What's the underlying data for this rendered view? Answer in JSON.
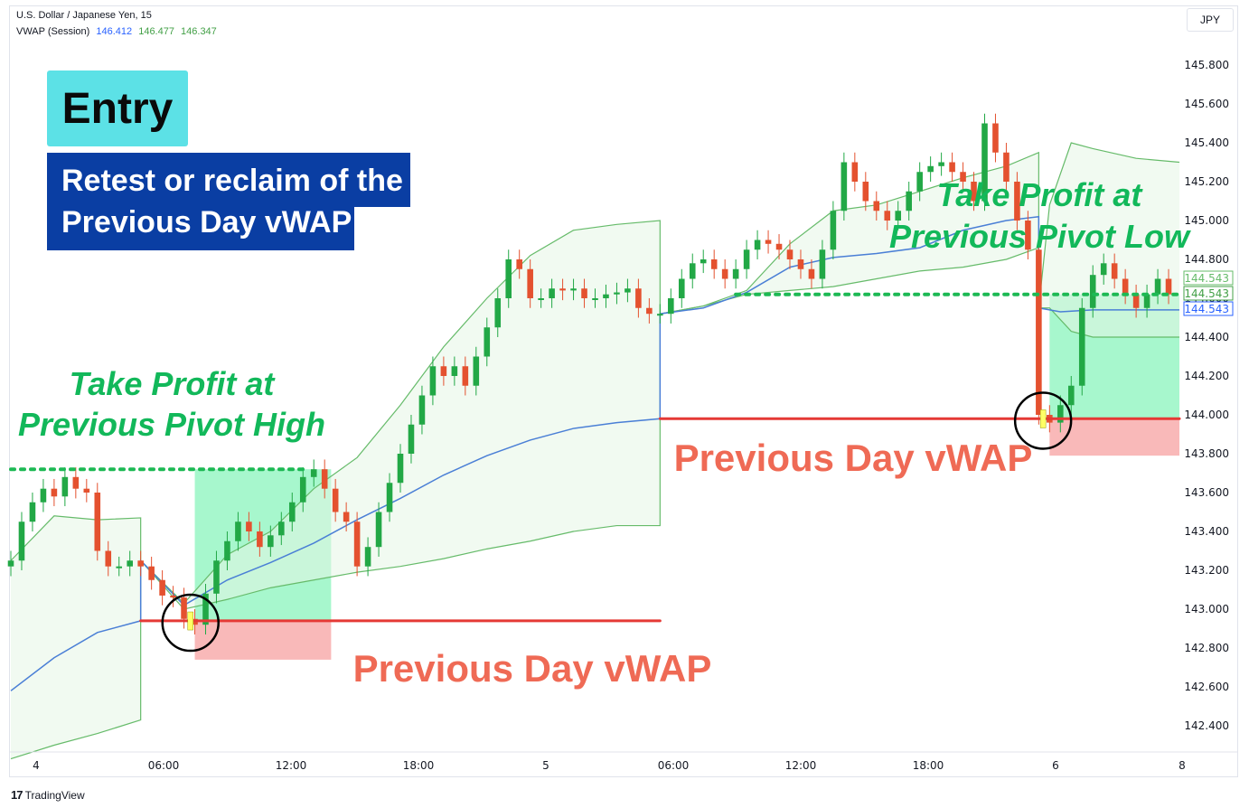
{
  "header": {
    "symbol": "U.S. Dollar / Japanese Yen, 15",
    "indicator": "VWAP (Session)",
    "vwap_values": [
      "146.412",
      "146.477",
      "146.347"
    ]
  },
  "currency_button": "JPY",
  "annotations": {
    "entry_title": "Entry",
    "entry_line1": "Retest or reclaim of the",
    "entry_line2": "Previous Day vWAP",
    "tp1_line1": "Take Profit at",
    "tp1_line2": "Previous Pivot High",
    "tp2_line1": "Take Profit at",
    "tp2_line2": "Previous Pivot Low",
    "prev_vwap_1": "Previous Day vWAP",
    "prev_vwap_2": "Previous Day vWAP"
  },
  "price_labels": [
    "144.543",
    "144.543",
    "144.543"
  ],
  "footer": {
    "brand": "TradingView"
  },
  "colors": {
    "bull": "#22a846",
    "bear": "#e4512f",
    "vwap": "#4a7fd6",
    "band": "#66bb6a",
    "level_red": "#e53935",
    "level_green": "#1db954",
    "tp_green": "#12b85a",
    "prev_text": "#ef6a55"
  },
  "chart_data": {
    "type": "line",
    "title": "U.S. Dollar / Japanese Yen, 15",
    "ylim": [
      142.22,
      146.0
    ],
    "y_ticks": [
      "145.800",
      "145.600",
      "145.400",
      "145.200",
      "145.000",
      "144.800",
      "144.600",
      "144.400",
      "144.200",
      "144.000",
      "143.800",
      "143.600",
      "143.400",
      "143.200",
      "143.000",
      "142.800",
      "142.600",
      "142.400"
    ],
    "x_ticks": [
      "4",
      "06:00",
      "12:00",
      "18:00",
      "5",
      "06:00",
      "12:00",
      "18:00",
      "6",
      "8"
    ],
    "levels": [
      {
        "label": "Previous Day vWAP",
        "value": 142.94,
        "from": 6.0,
        "to": 30.0
      },
      {
        "label": "Previous Day vWAP",
        "value": 143.98,
        "from": 30.0,
        "to": 54.0
      },
      {
        "label": "Take Profit at Previous Pivot High",
        "value": 143.72,
        "from": 0.0,
        "to": 13.5
      },
      {
        "label": "Take Profit at Previous Pivot Low",
        "value": 144.62,
        "from": 33.5,
        "to": 54.0
      }
    ],
    "trade_boxes": [
      {
        "x": [
          8.5,
          14.8
        ],
        "entry": 142.94,
        "target": 143.72,
        "stop": 142.74
      },
      {
        "x": [
          48.0,
          54.0
        ],
        "entry": 143.98,
        "target": 144.62,
        "stop": 143.79
      }
    ],
    "series": [
      {
        "name": "VWAP (Session)",
        "x": [
          0,
          2,
          4,
          6,
          6,
          8,
          10,
          12,
          14,
          16,
          18,
          20,
          22,
          24,
          26,
          28,
          30,
          30,
          32,
          34,
          36,
          38,
          40,
          42,
          44,
          46,
          47.5,
          47.5,
          48.5,
          50,
          52,
          54
        ],
        "y": [
          142.58,
          142.75,
          142.88,
          142.94,
          143.25,
          143.02,
          143.15,
          143.24,
          143.34,
          143.46,
          143.57,
          143.69,
          143.79,
          143.87,
          143.93,
          143.96,
          143.98,
          144.52,
          144.55,
          144.63,
          144.76,
          144.81,
          144.83,
          144.86,
          144.95,
          145.0,
          145.02,
          144.55,
          144.53,
          144.54,
          144.54,
          144.54
        ]
      },
      {
        "name": "Upper band",
        "x": [
          0,
          2,
          4,
          6,
          6,
          8,
          10,
          12,
          14,
          16,
          18,
          20,
          22,
          24,
          26,
          28,
          30,
          30,
          32,
          34,
          36,
          38,
          40,
          42,
          44,
          46,
          47.5,
          47.5,
          48,
          49,
          50,
          52,
          54
        ],
        "y": [
          143.25,
          143.48,
          143.46,
          143.47,
          143.25,
          143.03,
          143.28,
          143.4,
          143.62,
          143.78,
          144.05,
          144.35,
          144.6,
          144.82,
          144.95,
          144.98,
          145.0,
          144.52,
          144.56,
          144.64,
          144.88,
          145.05,
          145.08,
          145.15,
          145.22,
          145.28,
          145.35,
          144.55,
          145.08,
          145.4,
          145.37,
          145.32,
          145.3
        ]
      },
      {
        "name": "Lower band",
        "x": [
          0,
          2,
          4,
          6,
          6,
          8,
          10,
          12,
          14,
          16,
          18,
          20,
          22,
          24,
          26,
          28,
          30,
          30,
          32,
          34,
          36,
          38,
          40,
          42,
          44,
          46,
          47.5,
          47.5,
          48,
          49,
          50,
          52,
          54
        ],
        "y": [
          142.23,
          142.3,
          142.36,
          142.43,
          143.25,
          143.0,
          143.05,
          143.11,
          143.15,
          143.19,
          143.22,
          143.26,
          143.31,
          143.35,
          143.4,
          143.43,
          143.43,
          144.52,
          144.56,
          144.62,
          144.64,
          144.66,
          144.7,
          144.74,
          144.76,
          144.8,
          144.86,
          144.55,
          144.55,
          144.43,
          144.4,
          144.4,
          144.4
        ]
      },
      {
        "name": "Price",
        "x": [
          0,
          0.5,
          1,
          1.5,
          2,
          2.5,
          3,
          3.5,
          4,
          4.5,
          5,
          5.5,
          6,
          6.5,
          7,
          7.5,
          8,
          8.5,
          9,
          9.5,
          10,
          10.5,
          11,
          11.5,
          12,
          12.5,
          13,
          13.5,
          14,
          14.5,
          15,
          15.5,
          16,
          16.5,
          17,
          17.5,
          18,
          18.5,
          19,
          19.5,
          20,
          20.5,
          21,
          21.5,
          22,
          22.5,
          23,
          23.5,
          24,
          24.5,
          25,
          25.5,
          26,
          26.5,
          27,
          27.5,
          28,
          28.5,
          29,
          29.5,
          30,
          30.5,
          31,
          31.5,
          32,
          32.5,
          33,
          33.5,
          34,
          34.5,
          35,
          35.5,
          36,
          36.5,
          37,
          37.5,
          38,
          38.5,
          39,
          39.5,
          40,
          40.5,
          41,
          41.5,
          42,
          42.5,
          43,
          43.5,
          44,
          44.5,
          45,
          45.5,
          46,
          46.5,
          47,
          47.5,
          48,
          48.5,
          49,
          49.5,
          50,
          50.5,
          51,
          51.5,
          52,
          52.5,
          53,
          53.5
        ],
        "y": [
          143.25,
          143.45,
          143.55,
          143.62,
          143.58,
          143.68,
          143.62,
          143.6,
          143.3,
          143.22,
          143.22,
          143.25,
          143.22,
          143.15,
          143.07,
          143.06,
          142.95,
          142.92,
          143.08,
          143.25,
          143.35,
          143.45,
          143.4,
          143.32,
          143.38,
          143.45,
          143.55,
          143.68,
          143.72,
          143.62,
          143.5,
          143.45,
          143.22,
          143.32,
          143.5,
          143.65,
          143.8,
          143.95,
          144.1,
          144.25,
          144.2,
          144.25,
          144.15,
          144.3,
          144.45,
          144.6,
          144.8,
          144.75,
          144.6,
          144.6,
          144.65,
          144.64,
          144.65,
          144.6,
          144.6,
          144.62,
          144.63,
          144.65,
          144.55,
          144.52,
          144.52,
          144.6,
          144.7,
          144.78,
          144.8,
          144.75,
          144.7,
          144.75,
          144.85,
          144.9,
          144.88,
          144.85,
          144.8,
          144.75,
          144.7,
          144.85,
          145.05,
          145.3,
          145.2,
          145.1,
          145.05,
          145.0,
          145.05,
          145.15,
          145.25,
          145.28,
          145.3,
          145.25,
          145.2,
          145.1,
          145.5,
          145.35,
          145.2,
          145.0,
          144.85,
          144.0,
          143.96,
          144.05,
          144.15,
          144.55,
          144.72,
          144.78,
          144.7,
          144.62,
          144.55,
          144.62,
          144.7,
          144.62
        ]
      }
    ]
  }
}
